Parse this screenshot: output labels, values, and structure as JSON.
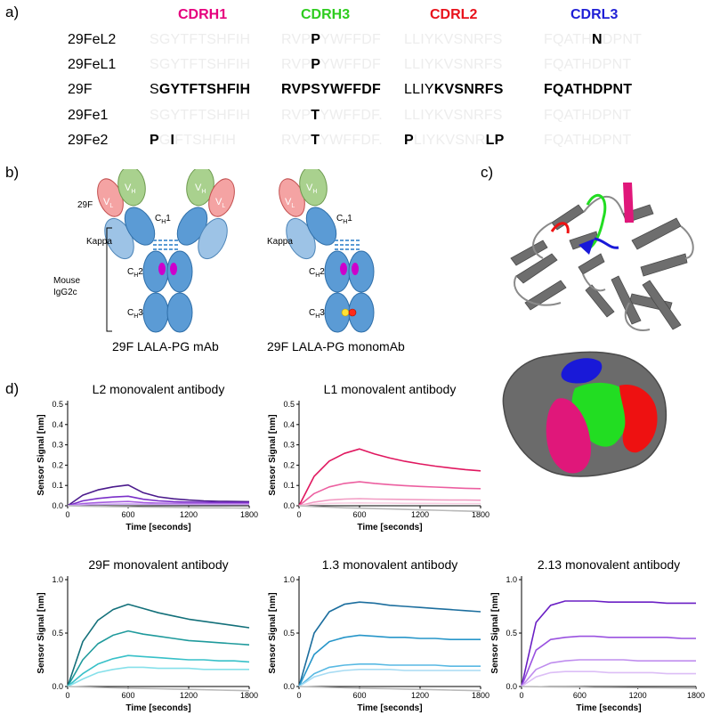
{
  "labels": {
    "a": "a)",
    "b": "b)",
    "c": "c)",
    "d": "d)"
  },
  "panel_a": {
    "headers": [
      {
        "text": "CDRH1",
        "color": "#e6007e"
      },
      {
        "text": "CDRH3",
        "color": "#2ecc1f"
      },
      {
        "text": "CDRL2",
        "color": "#e8121b"
      },
      {
        "text": "CDRL3",
        "color": "#1f1fd6"
      }
    ],
    "rows": [
      {
        "name": "29FeL2",
        "cells": [
          [
            {
              "t": "SGYTFTSHFIH",
              "s": "f"
            }
          ],
          [
            {
              "t": "RVP",
              "s": "f"
            },
            {
              "t": "P",
              "s": "b"
            },
            {
              "t": "YWFFDF",
              "s": "f"
            }
          ],
          [
            {
              "t": "LLIYKVSNRFS",
              "s": "f"
            }
          ],
          [
            {
              "t": "FQATH",
              "s": "f"
            },
            {
              "t": "N",
              "s": "b"
            },
            {
              "t": "DPNT",
              "s": "f"
            }
          ]
        ]
      },
      {
        "name": "29FeL1",
        "cells": [
          [
            {
              "t": "SGYTFTSHFIH",
              "s": "f"
            }
          ],
          [
            {
              "t": "RVP",
              "s": "f"
            },
            {
              "t": "P",
              "s": "b"
            },
            {
              "t": "YWFFDF",
              "s": "f"
            }
          ],
          [
            {
              "t": "LLIYKVSNRFS",
              "s": "f"
            }
          ],
          [
            {
              "t": "FQATHDPNT",
              "s": "f"
            }
          ]
        ]
      },
      {
        "name": "29F",
        "cells": [
          [
            {
              "t": "S",
              "s": "n"
            },
            {
              "t": "GYTFTSHFIH",
              "s": "b"
            }
          ],
          [
            {
              "t": "RVPSYWFFDF",
              "s": "b"
            }
          ],
          [
            {
              "t": "LLIY",
              "s": "n"
            },
            {
              "t": "KVSNRFS",
              "s": "b"
            }
          ],
          [
            {
              "t": "FQATHDPNT",
              "s": "b"
            }
          ]
        ]
      },
      {
        "name": "29Fe1",
        "cells": [
          [
            {
              "t": "SGYTFTSHFIH",
              "s": "f"
            }
          ],
          [
            {
              "t": "RVP",
              "s": "f"
            },
            {
              "t": "T",
              "s": "b"
            },
            {
              "t": "YWFFDF.",
              "s": "f"
            }
          ],
          [
            {
              "t": "LLIYKVSNRFS",
              "s": "f"
            }
          ],
          [
            {
              "t": "FQATHDPNT",
              "s": "f"
            }
          ]
        ]
      },
      {
        "name": "29Fe2",
        "cells": [
          [
            {
              "t": "P",
              "s": "b"
            },
            {
              "t": "G",
              "s": "f"
            },
            {
              "t": "I",
              "s": "b"
            },
            {
              "t": "FTSHFIH",
              "s": "f"
            }
          ],
          [
            {
              "t": "RVP",
              "s": "f"
            },
            {
              "t": "T",
              "s": "b"
            },
            {
              "t": "YWFFDF.",
              "s": "f"
            }
          ],
          [
            {
              "t": "P",
              "s": "b"
            },
            {
              "t": "LIYKVSNR",
              "s": "f"
            },
            {
              "t": "LP",
              "s": "b"
            }
          ],
          [
            {
              "t": "FQATHDPNT",
              "s": "f"
            }
          ]
        ]
      }
    ]
  },
  "panel_b": {
    "ab1": {
      "label_29f": "29F",
      "vl": "V",
      "vl_sub": "L",
      "vh": "V",
      "vh_sub": "H",
      "ch1": "C",
      "ch1_sub": "H",
      "ch1_num": "1",
      "ch2": "C",
      "ch2_sub": "H",
      "ch2_num": "2",
      "ch3": "C",
      "ch3_sub": "H",
      "ch3_num": "3",
      "kappa": "Kappa",
      "species": "Mouse",
      "isotype": "IgG2c"
    },
    "ab2": {
      "vl": "V",
      "vl_sub": "L",
      "vh": "V",
      "vh_sub": "H",
      "kappa": "Kappa"
    },
    "caption1": "29F LALA-PG mAb",
    "caption2": "29F LALA-PG monomAb",
    "colors": {
      "vl": "#f4a3a3",
      "vh": "#a9d18e",
      "kappa": "#9dc3e6",
      "heavy": "#5b9bd5",
      "lalapg": "#cc00cc",
      "knob_yellow": "#ffe135",
      "knob_red": "#ff2a1a"
    }
  },
  "panel_c": {
    "colors": {
      "cdrh1": "#e0177a",
      "cdrh3": "#22dd22",
      "cdrl2": "#ee1111",
      "cdrl3": "#1919d8",
      "protein": "#666666"
    }
  },
  "chart_data": [
    {
      "type": "line",
      "title": "L2 monovalent antibody",
      "xlabel": "Time [seconds]",
      "ylabel": "Sensor Signal [nm]",
      "xlim": [
        0,
        1800
      ],
      "ylim": [
        0,
        0.5
      ],
      "xticks": [
        0,
        600,
        1200,
        1800
      ],
      "yticks": [
        0.0,
        0.1,
        0.2,
        0.3,
        0.4,
        0.5
      ],
      "ytick_labels": [
        "0.0",
        "0.1",
        "0.2",
        "0.3",
        "0.4",
        "0.5"
      ],
      "x": [
        0,
        150,
        300,
        450,
        600,
        750,
        900,
        1050,
        1200,
        1350,
        1500,
        1650,
        1800
      ],
      "series": [
        {
          "color": "#4b1a8c",
          "values": [
            0,
            0.052,
            0.078,
            0.093,
            0.102,
            0.064,
            0.044,
            0.034,
            0.028,
            0.024,
            0.022,
            0.021,
            0.02
          ]
        },
        {
          "color": "#7a2fc8",
          "values": [
            0,
            0.024,
            0.036,
            0.043,
            0.047,
            0.032,
            0.024,
            0.02,
            0.018,
            0.017,
            0.016,
            0.016,
            0.015
          ]
        },
        {
          "color": "#a65ee0",
          "values": [
            0,
            0.011,
            0.016,
            0.019,
            0.021,
            0.016,
            0.013,
            0.012,
            0.011,
            0.011,
            0.01,
            0.01,
            0.01
          ]
        },
        {
          "color": "#caa2f0",
          "values": [
            0,
            0.005,
            0.007,
            0.008,
            0.009,
            0.008,
            0.007,
            0.007,
            0.006,
            0.006,
            0.006,
            0.006,
            0.006
          ]
        },
        {
          "color": "#b9b9b9",
          "values": [
            0,
            -0.002,
            -0.003,
            -0.004,
            -0.005,
            -0.006,
            -0.007,
            -0.008,
            -0.009,
            -0.01,
            -0.01,
            -0.011,
            -0.012
          ]
        }
      ]
    },
    {
      "type": "line",
      "title": "L1 monovalent antibody",
      "xlabel": "Time [seconds]",
      "ylabel": "Sensor Signal [nm]",
      "xlim": [
        0,
        1800
      ],
      "ylim": [
        0,
        0.5
      ],
      "xticks": [
        0,
        600,
        1200,
        1800
      ],
      "yticks": [
        0.0,
        0.1,
        0.2,
        0.3,
        0.4,
        0.5
      ],
      "ytick_labels": [
        "0.0",
        "0.1",
        "0.2",
        "0.3",
        "0.4",
        "0.5"
      ],
      "x": [
        0,
        150,
        300,
        450,
        600,
        750,
        900,
        1050,
        1200,
        1350,
        1500,
        1650,
        1800
      ],
      "series": [
        {
          "color": "#e0175f",
          "values": [
            0,
            0.145,
            0.22,
            0.258,
            0.28,
            0.255,
            0.235,
            0.219,
            0.206,
            0.195,
            0.186,
            0.178,
            0.172
          ]
        },
        {
          "color": "#ec5fa0",
          "values": [
            0,
            0.06,
            0.093,
            0.11,
            0.118,
            0.11,
            0.104,
            0.099,
            0.095,
            0.092,
            0.089,
            0.086,
            0.084
          ]
        },
        {
          "color": "#f29cc4",
          "values": [
            0,
            0.018,
            0.028,
            0.033,
            0.035,
            0.033,
            0.032,
            0.031,
            0.03,
            0.029,
            0.028,
            0.028,
            0.027
          ]
        },
        {
          "color": "#f8cfe2",
          "values": [
            0,
            0.008,
            0.012,
            0.013,
            0.014,
            0.013,
            0.013,
            0.012,
            0.012,
            0.012,
            0.011,
            0.011,
            0.011
          ]
        },
        {
          "color": "#b9b9b9",
          "values": [
            0,
            -0.004,
            -0.007,
            -0.01,
            -0.012,
            -0.014,
            -0.016,
            -0.018,
            -0.02,
            -0.022,
            -0.024,
            -0.026,
            -0.028
          ]
        }
      ]
    },
    {
      "type": "line",
      "title": "29F monovalent antibody",
      "xlabel": "Time [seconds]",
      "ylabel": "Sensor Signal [nm]",
      "xlim": [
        0,
        1800
      ],
      "ylim": [
        0,
        1.0
      ],
      "xticks": [
        0,
        600,
        1200,
        1800
      ],
      "yticks": [
        0.0,
        0.5,
        1.0
      ],
      "ytick_labels": [
        "0.0",
        "0.5",
        "1.0"
      ],
      "x": [
        0,
        150,
        300,
        450,
        600,
        750,
        900,
        1050,
        1200,
        1350,
        1500,
        1650,
        1800
      ],
      "series": [
        {
          "color": "#13707a",
          "values": [
            0,
            0.42,
            0.62,
            0.72,
            0.77,
            0.73,
            0.69,
            0.66,
            0.63,
            0.61,
            0.59,
            0.57,
            0.55
          ]
        },
        {
          "color": "#1f9a9c",
          "values": [
            0,
            0.25,
            0.4,
            0.48,
            0.52,
            0.49,
            0.47,
            0.45,
            0.43,
            0.42,
            0.41,
            0.4,
            0.39
          ]
        },
        {
          "color": "#37c0c8",
          "values": [
            0,
            0.12,
            0.21,
            0.26,
            0.29,
            0.28,
            0.27,
            0.26,
            0.25,
            0.25,
            0.24,
            0.24,
            0.23
          ]
        },
        {
          "color": "#86e0ea",
          "values": [
            0,
            0.07,
            0.13,
            0.16,
            0.18,
            0.18,
            0.17,
            0.17,
            0.17,
            0.16,
            0.16,
            0.16,
            0.16
          ]
        },
        {
          "color": "#b9b9b9",
          "values": [
            0,
            -0.004,
            -0.008,
            -0.012,
            -0.015,
            -0.018,
            -0.021,
            -0.024,
            -0.027,
            -0.03,
            -0.033,
            -0.036,
            -0.039
          ]
        }
      ]
    },
    {
      "type": "line",
      "title": "1.3 monovalent antibody",
      "xlabel": "Time [seconds]",
      "ylabel": "Sensor Signal [nm]",
      "xlim": [
        0,
        1800
      ],
      "ylim": [
        0,
        1.0
      ],
      "xticks": [
        0,
        600,
        1200,
        1800
      ],
      "yticks": [
        0.0,
        0.5,
        1.0
      ],
      "ytick_labels": [
        "0.0",
        "0.5",
        "1.0"
      ],
      "x": [
        0,
        150,
        300,
        450,
        600,
        750,
        900,
        1050,
        1200,
        1350,
        1500,
        1650,
        1800
      ],
      "series": [
        {
          "color": "#1c6e9e",
          "values": [
            0,
            0.5,
            0.7,
            0.77,
            0.79,
            0.78,
            0.76,
            0.75,
            0.74,
            0.73,
            0.72,
            0.71,
            0.7
          ]
        },
        {
          "color": "#2796c9",
          "values": [
            0,
            0.3,
            0.42,
            0.46,
            0.48,
            0.47,
            0.46,
            0.46,
            0.45,
            0.45,
            0.44,
            0.44,
            0.44
          ]
        },
        {
          "color": "#59b9e3",
          "values": [
            0,
            0.12,
            0.18,
            0.2,
            0.21,
            0.21,
            0.2,
            0.2,
            0.2,
            0.2,
            0.19,
            0.19,
            0.19
          ]
        },
        {
          "color": "#a8dcf3",
          "values": [
            0,
            0.09,
            0.13,
            0.15,
            0.16,
            0.16,
            0.16,
            0.15,
            0.15,
            0.15,
            0.15,
            0.15,
            0.15
          ]
        },
        {
          "color": "#b9b9b9",
          "values": [
            0,
            -0.004,
            -0.008,
            -0.012,
            -0.015,
            -0.018,
            -0.021,
            -0.024,
            -0.027,
            -0.03,
            -0.033,
            -0.036,
            -0.039
          ]
        }
      ]
    },
    {
      "type": "line",
      "title": "2.13 monovalent antibody",
      "xlabel": "Time [seconds]",
      "ylabel": "Sensor Signal [nm]",
      "xlim": [
        0,
        1800
      ],
      "ylim": [
        0,
        1.0
      ],
      "xticks": [
        0,
        600,
        1200,
        1800
      ],
      "yticks": [
        0.0,
        0.5,
        1.0
      ],
      "ytick_labels": [
        "0.0",
        "0.5",
        "1.0"
      ],
      "x": [
        0,
        150,
        300,
        450,
        600,
        750,
        900,
        1050,
        1200,
        1350,
        1500,
        1650,
        1800
      ],
      "series": [
        {
          "color": "#6a1fc4",
          "values": [
            0,
            0.6,
            0.76,
            0.8,
            0.8,
            0.8,
            0.79,
            0.79,
            0.79,
            0.79,
            0.78,
            0.78,
            0.78
          ]
        },
        {
          "color": "#9a52e0",
          "values": [
            0,
            0.34,
            0.44,
            0.46,
            0.47,
            0.47,
            0.46,
            0.46,
            0.46,
            0.46,
            0.46,
            0.45,
            0.45
          ]
        },
        {
          "color": "#bf8dee",
          "values": [
            0,
            0.16,
            0.22,
            0.24,
            0.25,
            0.25,
            0.25,
            0.25,
            0.24,
            0.24,
            0.24,
            0.24,
            0.24
          ]
        },
        {
          "color": "#dcbef6",
          "values": [
            0,
            0.09,
            0.13,
            0.14,
            0.14,
            0.14,
            0.13,
            0.13,
            0.13,
            0.13,
            0.12,
            0.12,
            0.12
          ]
        },
        {
          "color": "#b9b9b9",
          "values": [
            0,
            -0.002,
            -0.004,
            -0.005,
            -0.006,
            -0.008,
            -0.009,
            -0.01,
            -0.011,
            -0.012,
            -0.013,
            -0.014,
            -0.015
          ]
        }
      ]
    }
  ]
}
